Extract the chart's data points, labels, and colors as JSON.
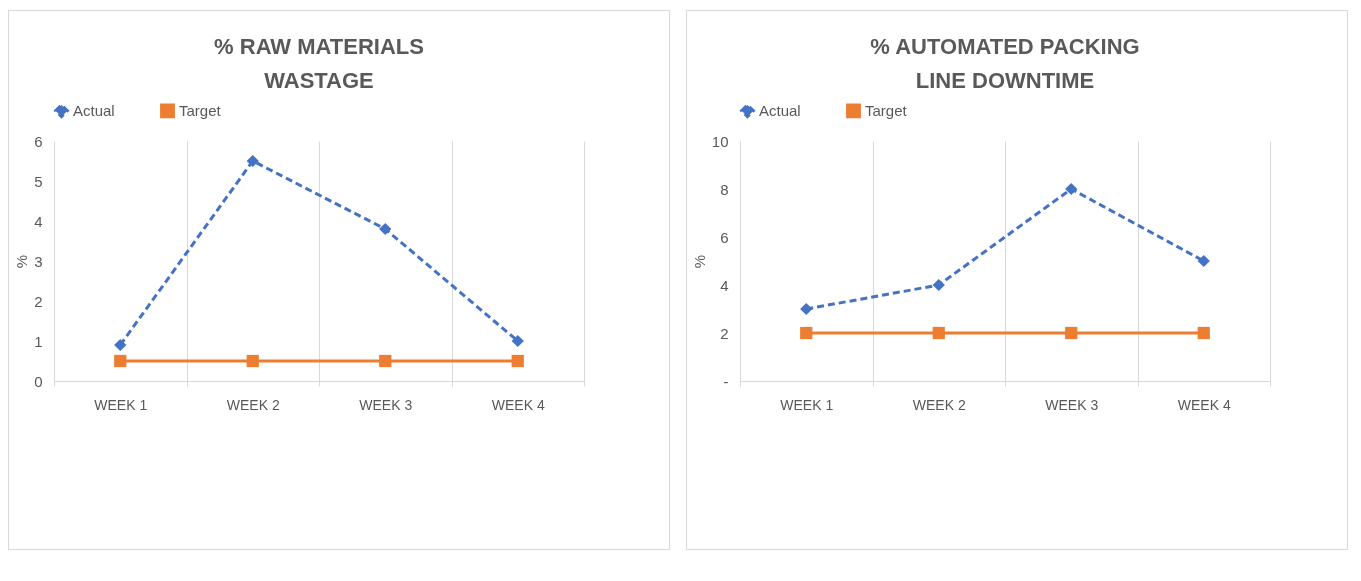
{
  "chart_data": [
    {
      "type": "line",
      "title": "% RAW MATERIALS WASTAGE",
      "ylabel": "%",
      "categories": [
        "WEEK 1",
        "WEEK 2",
        "WEEK 3",
        "WEEK 4"
      ],
      "series": [
        {
          "name": "Actual",
          "color": "#4472c4",
          "values": [
            0.9,
            5.5,
            3.8,
            1.0
          ],
          "marker": "diamond",
          "line_style": "dashed"
        },
        {
          "name": "Target",
          "color": "#ed7d31",
          "values": [
            0.5,
            0.5,
            0.5,
            0.5
          ],
          "marker": "square",
          "line_style": "solid"
        }
      ],
      "ylim": [
        0,
        6
      ],
      "yticks": [
        0,
        1,
        2,
        3,
        4,
        5,
        6
      ],
      "grid": "x",
      "legend": "top"
    },
    {
      "type": "line",
      "title": "% AUTOMATED PACKING LINE DOWNTIME",
      "ylabel": "%",
      "categories": [
        "WEEK 1",
        "WEEK 2",
        "WEEK 3",
        "WEEK 4"
      ],
      "series": [
        {
          "name": "Actual",
          "color": "#4472c4",
          "values": [
            3,
            4,
            8,
            5
          ],
          "marker": "diamond",
          "line_style": "dashed"
        },
        {
          "name": "Target",
          "color": "#ed7d31",
          "values": [
            2,
            2,
            2,
            2
          ],
          "marker": "square",
          "line_style": "solid"
        }
      ],
      "ylim": [
        0,
        10
      ],
      "yticks": [
        {
          "value": 0,
          "label": "-"
        },
        2,
        4,
        6,
        8,
        10
      ],
      "grid": "x",
      "legend": "top"
    }
  ]
}
